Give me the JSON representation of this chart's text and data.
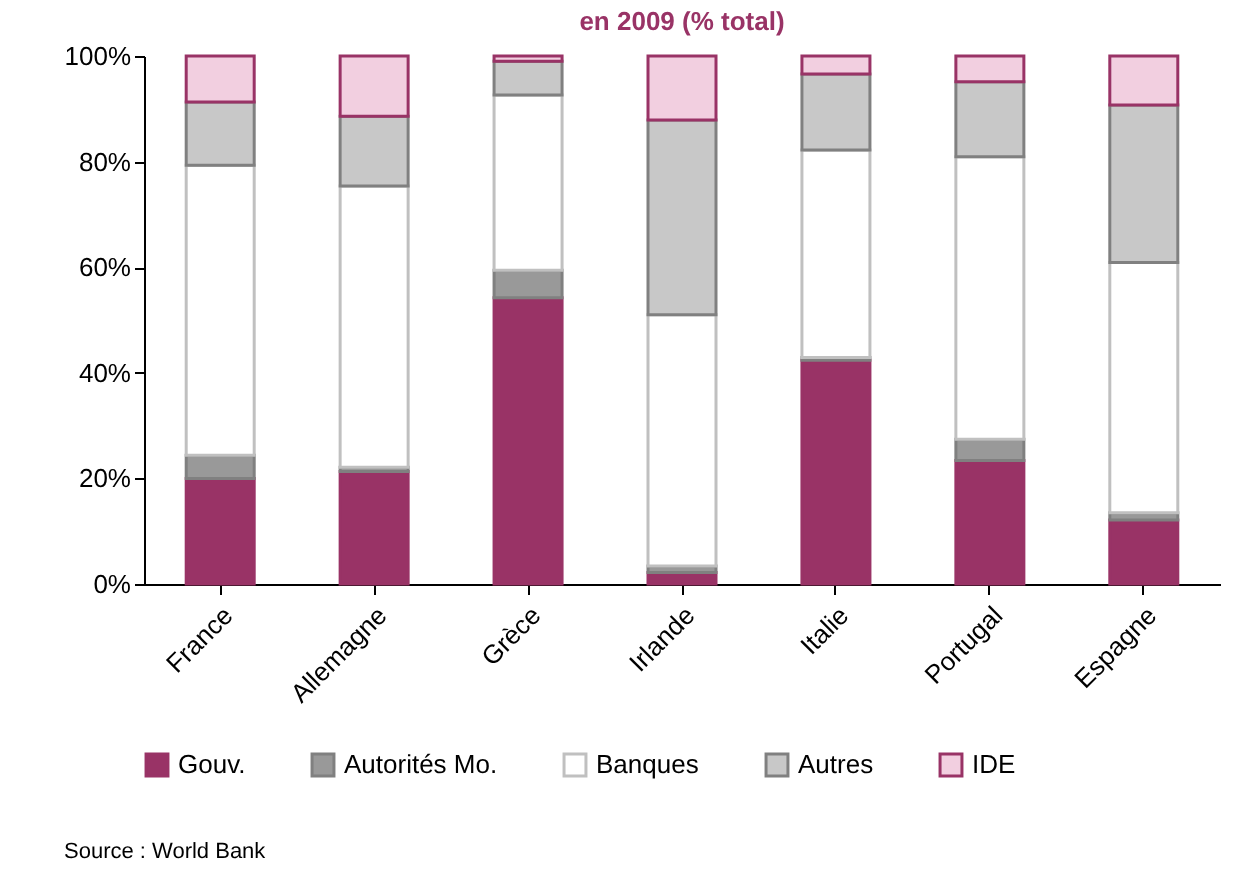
{
  "chart_data": {
    "type": "bar",
    "stacked": true,
    "title": "en 2009 (% total)",
    "categories": [
      "France",
      "Allemagne",
      "Grèce",
      "Irlande",
      "Italie",
      "Portugal",
      "Espagne"
    ],
    "series": [
      {
        "name": "Gouv.",
        "color": "#993366",
        "values": [
          20.0,
          21.3,
          54.2,
          2.2,
          42.4,
          23.4,
          12.1
        ]
      },
      {
        "name": "Autorités Mo.",
        "color": "#999999",
        "values": [
          4.4,
          0.8,
          5.2,
          1.2,
          0.5,
          4.0,
          1.4
        ]
      },
      {
        "name": "Banques",
        "color": "#ffffff",
        "values": [
          54.9,
          53.3,
          33.2,
          47.6,
          39.3,
          53.5,
          47.4
        ]
      },
      {
        "name": "Autres",
        "color": "#c8c8c8",
        "values": [
          12.0,
          13.2,
          6.4,
          36.9,
          14.4,
          14.2,
          29.8
        ]
      },
      {
        "name": "IDE",
        "color": "#f2cfe0",
        "values": [
          8.7,
          11.4,
          1.0,
          12.1,
          3.4,
          4.9,
          9.3
        ]
      }
    ],
    "ylim": [
      0,
      100
    ],
    "yticks": [
      {
        "value": 0,
        "label": "0%"
      },
      {
        "value": 20,
        "label": "20%"
      },
      {
        "value": 40,
        "label": "40%"
      },
      {
        "value": 60,
        "label": "60%"
      },
      {
        "value": 80,
        "label": "80%"
      },
      {
        "value": 100,
        "label": "100%"
      }
    ],
    "grid": false,
    "legend": "bottom",
    "annotations": [
      "Source : World Bank"
    ]
  }
}
